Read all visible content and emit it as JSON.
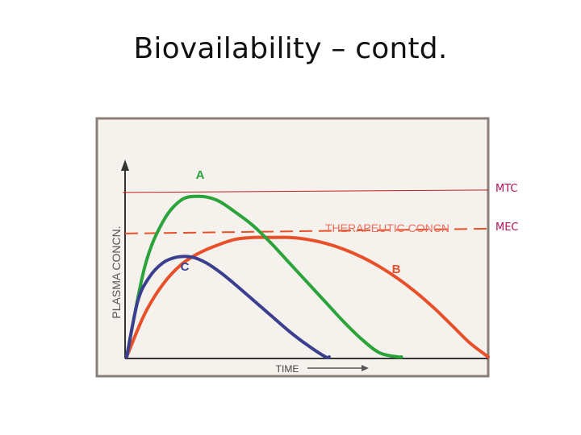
{
  "slide": {
    "title": "Biovailability – contd."
  },
  "chart_data": {
    "type": "line",
    "xlabel": "TIME",
    "ylabel": "PLASMA CONCN.",
    "x_range": [
      0,
      100
    ],
    "y_range": [
      0,
      100
    ],
    "grid": false,
    "series": [
      {
        "name": "A",
        "color": "#2aa33a",
        "x": [
          0,
          5,
          10,
          15,
          20,
          25,
          30,
          35,
          40,
          45,
          50,
          55,
          60,
          65,
          70,
          75,
          76
        ],
        "y": [
          0,
          46,
          69,
          80,
          82,
          80,
          74,
          67,
          58,
          48,
          38,
          28,
          18,
          9,
          2,
          0,
          0
        ]
      },
      {
        "name": "B",
        "color": "#e8502a",
        "x": [
          0,
          5,
          10,
          15,
          20,
          25,
          30,
          35,
          40,
          45,
          50,
          55,
          60,
          65,
          70,
          75,
          80,
          85,
          90,
          95,
          100
        ],
        "y": [
          0,
          22,
          37,
          47,
          53,
          57,
          60,
          61,
          61,
          61,
          60,
          58,
          55,
          51,
          46,
          40,
          33,
          25,
          16,
          7,
          0
        ]
      },
      {
        "name": "C",
        "color": "#3b3f8f",
        "x": [
          0,
          3,
          6,
          10,
          14,
          18,
          22,
          26,
          30,
          35,
          40,
          45,
          50,
          55,
          56
        ],
        "y": [
          0,
          28,
          40,
          48,
          51,
          51,
          48,
          43,
          37,
          29,
          21,
          13,
          6,
          0,
          0
        ]
      }
    ],
    "reference_lines": [
      {
        "name": "MTC",
        "y": 84,
        "color": "#c02020",
        "style": "solid"
      },
      {
        "name": "MEC",
        "y": 63,
        "color": "#e8502a",
        "style": "dashed",
        "label": "THERAPEUTIC CONCN"
      }
    ]
  }
}
